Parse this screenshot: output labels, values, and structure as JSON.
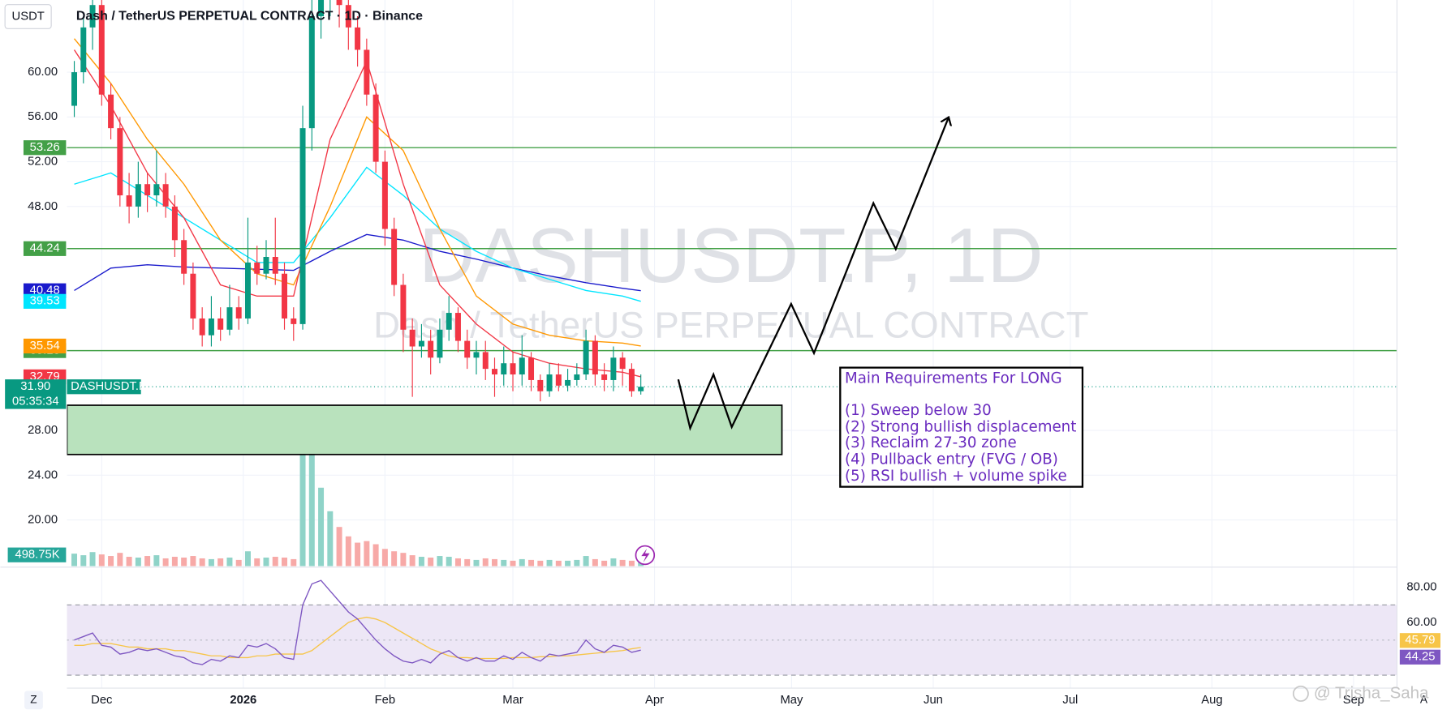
{
  "header": {
    "currency": "USDT",
    "title": "Dash / TetherUS PERPETUAL CONTRACT · 1D · Binance"
  },
  "watermark": {
    "symbol": "DASHUSDT.P, 1D",
    "description": "Dash / TetherUS PERPETUAL CONTRACT"
  },
  "chart_data": [
    {
      "type": "candlestick",
      "x": [
        2,
        4,
        6,
        8,
        10,
        12,
        14,
        16,
        18,
        20,
        22,
        24,
        26,
        28,
        30,
        32,
        34,
        36,
        38,
        40,
        42,
        44,
        46,
        48,
        50,
        52,
        54,
        56,
        58,
        60,
        62,
        64,
        66,
        68,
        70,
        72,
        74,
        76,
        78,
        80,
        82,
        84,
        86,
        88,
        90,
        92,
        94,
        96,
        98,
        100,
        102,
        104,
        106,
        108,
        110,
        112,
        114,
        116,
        118,
        120,
        122,
        124,
        126
      ],
      "open": [
        57,
        60,
        64,
        66,
        58,
        55,
        49,
        48,
        50,
        49,
        50,
        48,
        45,
        42,
        38,
        36.5,
        38,
        37,
        39,
        38,
        43,
        42,
        43.5,
        42,
        38,
        37.5,
        55,
        65,
        67,
        68,
        66,
        64,
        62,
        58,
        52,
        46,
        41,
        37,
        35.5,
        36,
        34.5,
        37,
        38.5,
        36,
        34.5,
        35,
        33.5,
        33,
        34,
        33,
        34.5,
        32.5,
        31.5,
        33,
        32,
        32.5,
        33,
        36,
        33,
        32.5,
        34.5,
        33.5,
        31.5
      ],
      "high": [
        61,
        65,
        68,
        67,
        59,
        56,
        51,
        52,
        51,
        53,
        51,
        49,
        46,
        43,
        39,
        40,
        39,
        41,
        40,
        47,
        44.5,
        45,
        47,
        43,
        39,
        57,
        68,
        70,
        71,
        70,
        67,
        65,
        63,
        59,
        53,
        47,
        42,
        38,
        37.5,
        37,
        38,
        40,
        39,
        37,
        36,
        36,
        34.5,
        35.5,
        35,
        36.5,
        35,
        33,
        34,
        34,
        33.5,
        34,
        37,
        36.5,
        34,
        35.5,
        35,
        34,
        33
      ],
      "low": [
        56,
        59,
        62,
        57,
        54,
        48,
        46.5,
        47,
        47.5,
        48,
        47,
        43.5,
        41,
        37,
        35.5,
        35.5,
        36,
        36.5,
        37,
        37.5,
        41,
        41.5,
        41,
        37,
        36,
        37,
        53,
        63,
        65,
        64,
        62,
        60.5,
        57,
        51,
        44.5,
        40,
        35,
        31,
        34.5,
        33,
        34,
        36,
        35,
        33.5,
        33,
        32.5,
        31,
        32,
        31.5,
        32,
        31.5,
        30.6,
        31,
        31.5,
        31.5,
        32,
        32.5,
        32,
        31.5,
        31.5,
        32,
        31,
        31.2
      ],
      "close": [
        60,
        64,
        66,
        58,
        55,
        49,
        48,
        50,
        49,
        50,
        48,
        45,
        42,
        38,
        36.5,
        38,
        37,
        39,
        38,
        43,
        42,
        43.5,
        42,
        38,
        37.5,
        55,
        65,
        67,
        68,
        66,
        64,
        62,
        58,
        52,
        46,
        41,
        37,
        35.5,
        36,
        34.5,
        37,
        38.5,
        36,
        34.5,
        35,
        33.5,
        33,
        34,
        33,
        34.5,
        32.5,
        31.5,
        33,
        32,
        32.5,
        33,
        36,
        33,
        32.5,
        34.5,
        33.5,
        31.5,
        31.9
      ],
      "up_color": "#089981",
      "down_color": "#f23645",
      "xlim": [
        0.4,
        291.5
      ],
      "ylim": [
        15.87,
        66.45
      ],
      "yticks": [
        {
          "value": 20,
          "label": "20.00"
        },
        {
          "value": 24,
          "label": "24.00"
        },
        {
          "value": 28,
          "label": "28.00"
        },
        {
          "value": 48,
          "label": "48.00"
        },
        {
          "value": 52,
          "label": "52.00"
        },
        {
          "value": 56,
          "label": "56.00"
        },
        {
          "value": 60,
          "label": "60.00"
        }
      ],
      "xticks": [
        {
          "value": 8,
          "label": "Dec"
        },
        {
          "value": 39,
          "label": "2026"
        },
        {
          "value": 70,
          "label": "Feb"
        },
        {
          "value": 98,
          "label": "Mar"
        },
        {
          "value": 129,
          "label": "Apr"
        },
        {
          "value": 159,
          "label": "May"
        },
        {
          "value": 190,
          "label": "Jun"
        },
        {
          "value": 220,
          "label": "Jul"
        },
        {
          "value": 251,
          "label": "Aug"
        },
        {
          "value": 282,
          "label": "Sep"
        }
      ],
      "ma_x": [
        2,
        10,
        18,
        26,
        34,
        42,
        50,
        58,
        66,
        74,
        82,
        90,
        98,
        106,
        114,
        122,
        126
      ],
      "moving_averages": [
        {
          "color": "#1a1acc",
          "values": [
            40.5,
            42.5,
            42.8,
            42.6,
            42.5,
            42.4,
            42.3,
            44,
            45.5,
            45,
            44,
            43.3,
            42.5,
            41.8,
            41.2,
            40.7,
            40.48
          ]
        },
        {
          "color": "#00e5ff",
          "values": [
            50,
            51,
            49,
            47,
            45,
            43,
            43,
            47,
            51.5,
            49,
            46,
            44,
            42.5,
            41.5,
            40.5,
            40,
            39.53
          ]
        },
        {
          "color": "#ff9800",
          "values": [
            63,
            59,
            54,
            50,
            45,
            42,
            41,
            48,
            56,
            53,
            46,
            40,
            37.5,
            36.5,
            36,
            35.8,
            35.54
          ]
        },
        {
          "color": "#f23645",
          "values": [
            62,
            57,
            51,
            47,
            41,
            40,
            40,
            54,
            61,
            50,
            41,
            37.5,
            35,
            34,
            33.5,
            33.2,
            32.79
          ]
        }
      ],
      "levels": [
        53.26,
        44.24,
        35.13
      ],
      "level_color": "#43a047",
      "zone": [
        25.85,
        30.25
      ],
      "zone_color": "#b9e2bd",
      "projection": {
        "x": [
          134.2,
          136.8,
          141.9,
          145.9,
          158.9,
          163.9,
          176.9,
          181.8,
          193.3
        ],
        "y": [
          32.56,
          28.2,
          33,
          28.3,
          39.3,
          34.9,
          48.3,
          44.2,
          55.9
        ]
      },
      "last_price": {
        "value": 31.9,
        "label": "31.90"
      },
      "countdown": "05:35:34",
      "symbol": "DASHUSDT.P"
    },
    {
      "type": "bar",
      "values": [
        1600000,
        1400000,
        1800000,
        1500000,
        1300000,
        1700000,
        1200000,
        1100000,
        1300000,
        1400000,
        1000000,
        1200000,
        1100000,
        1300000,
        1000000,
        900000,
        1000000,
        1100000,
        800000,
        1900000,
        1000000,
        1100000,
        1200000,
        1100000,
        900000,
        18500000,
        16000000,
        10000000,
        7000000,
        5000000,
        3800000,
        3000000,
        3200000,
        2800000,
        2200000,
        1900000,
        1700000,
        1400000,
        1200000,
        1100000,
        1300000,
        1200000,
        1000000,
        900000,
        800000,
        1000000,
        900000,
        800000,
        700000,
        900000,
        800000,
        700000,
        800000,
        700000,
        700000,
        800000,
        1300000,
        900000,
        700000,
        1000000,
        800000,
        700000,
        498750
      ],
      "value_labels": {
        "62": "498.75K"
      },
      "up_color": "#8fd3c8",
      "down_color": "#f7a9a7",
      "ylim": [
        0,
        20000000
      ]
    },
    {
      "type": "line",
      "series": [
        {
          "color": "#7e57c2",
          "values": [
            50,
            52,
            54,
            47,
            46,
            42,
            43,
            45,
            44,
            45,
            43,
            41,
            40,
            37,
            36,
            39,
            38,
            41,
            40,
            47,
            46,
            48,
            45,
            40,
            39,
            70,
            82,
            84,
            78,
            72,
            66,
            62,
            56,
            50,
            45,
            41,
            38,
            37,
            39,
            37,
            42,
            44,
            40,
            38,
            40,
            38,
            38,
            41,
            39,
            43,
            40,
            38,
            42,
            41,
            42,
            43,
            50,
            45,
            43,
            47,
            46,
            43,
            44.25
          ]
        },
        {
          "color": "#f7c548",
          "values": [
            47,
            47,
            48,
            48,
            48,
            47,
            46,
            46,
            45,
            45,
            45,
            44,
            44,
            43,
            42,
            41,
            41,
            40,
            40,
            40,
            41,
            41,
            42,
            42,
            42,
            42,
            44,
            48,
            52,
            56,
            60,
            62,
            63,
            62,
            60,
            57,
            54,
            51,
            48,
            45,
            43,
            41,
            40,
            40,
            39.5,
            39.5,
            39.5,
            39.5,
            40,
            40,
            40,
            40.5,
            40.5,
            41,
            41,
            41.5,
            42,
            42.5,
            43,
            43.5,
            44,
            45,
            45.79
          ]
        }
      ],
      "ylim": [
        22.6,
        88.4
      ],
      "yticks": [
        {
          "value": 80,
          "label": "80.00"
        },
        {
          "value": 60,
          "label": "60.00"
        }
      ],
      "band": [
        30,
        70
      ],
      "midline": 50,
      "band_color": "#ede7f6"
    }
  ],
  "annotation": {
    "title": "Main Requirements For LONG",
    "items": [
      "(1) Sweep below 30",
      "(2) Strong bullish displacement",
      "(3) Reclaim 27-30 zone",
      "(4) Pullback entry (FVG / OB)",
      "(5) RSI bullish + volume spike"
    ]
  },
  "attribution": "@ Trisha_Saha",
  "buttons": {
    "left": "Z",
    "right": "A"
  }
}
